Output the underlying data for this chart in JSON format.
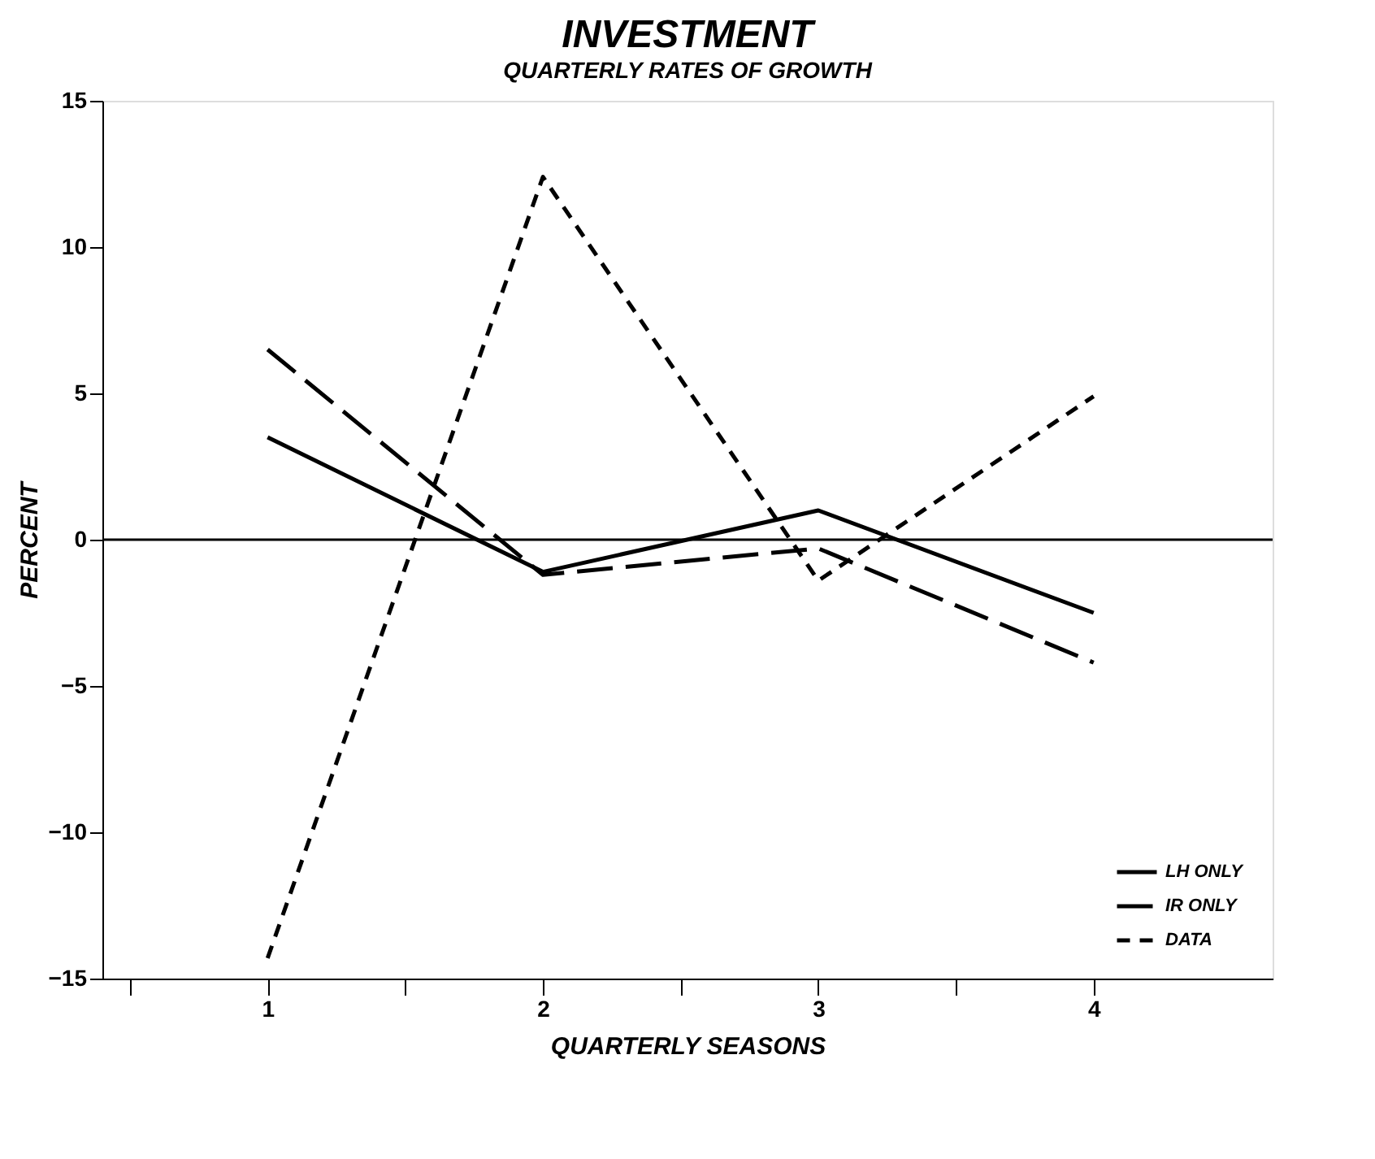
{
  "chart_data": {
    "type": "line",
    "title": "INVESTMENT",
    "subtitle": "QUARTERLY RATES OF GROWTH",
    "xlabel": "QUARTERLY SEASONS",
    "ylabel": "PERCENT",
    "x": [
      1,
      2,
      3,
      4
    ],
    "xlim": [
      0.4,
      4.65
    ],
    "xticks": [
      {
        "value": 0.5,
        "label": null
      },
      1,
      {
        "value": 1.5,
        "label": null
      },
      2,
      {
        "value": 2.5,
        "label": null
      },
      3,
      {
        "value": 3.5,
        "label": null
      },
      4
    ],
    "ylim": [
      -15,
      15
    ],
    "yticks": [
      -15,
      -10,
      -5,
      0,
      5,
      10,
      15
    ],
    "series": [
      {
        "name": "LH ONLY",
        "color": "#000000",
        "line_style": "solid",
        "values": [
          3.5,
          -1.1,
          1.0,
          -2.5
        ]
      },
      {
        "name": "IR ONLY",
        "color": "#000000",
        "line_style": "longdash",
        "values": [
          6.5,
          -1.2,
          -0.3,
          -4.2
        ]
      },
      {
        "name": "DATA",
        "color": "#000000",
        "line_style": "dashed",
        "values": [
          -14.3,
          12.4,
          -1.4,
          4.9
        ]
      }
    ],
    "ref_lines": [
      {
        "axis": "y",
        "value": 0,
        "label": null,
        "color": "#000000",
        "line_style": "solid"
      }
    ],
    "legend": "bottom right",
    "grid": false
  }
}
